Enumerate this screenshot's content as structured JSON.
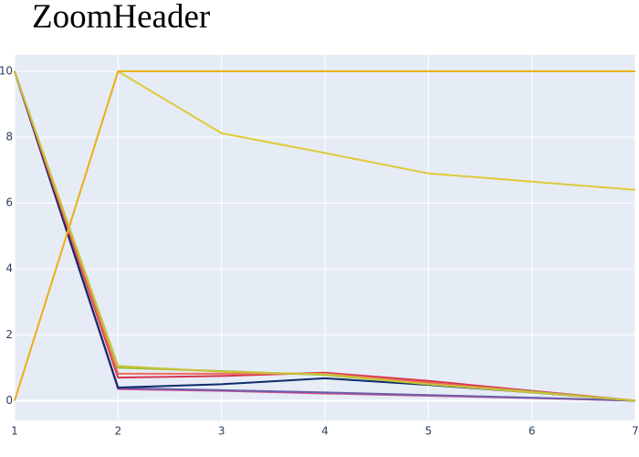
{
  "title": "ZoomHeader",
  "chart_data": {
    "type": "line",
    "title": "ZoomHeader",
    "xlabel": "",
    "ylabel": "",
    "xlim": [
      1,
      7
    ],
    "ylim": [
      -0.6,
      10.5
    ],
    "x": [
      1,
      2,
      3,
      4,
      5,
      6,
      7
    ],
    "xticks": [
      "1",
      "2",
      "3",
      "4",
      "5",
      "6",
      "7"
    ],
    "yticks": [
      "0",
      "2",
      "4",
      "6",
      "8",
      "10"
    ],
    "ytick_values": [
      0,
      2,
      4,
      6,
      8,
      10
    ],
    "grid": true,
    "plot_bg": "#e5ecf6",
    "grid_color": "#ffffff",
    "series": [
      {
        "color": "#d44f8f",
        "values": [
          10,
          0.35,
          0.3,
          0.22,
          0.15,
          0.08,
          0.0
        ]
      },
      {
        "color": "#6a5fa8",
        "values": [
          10,
          0.38,
          0.32,
          0.25,
          0.17,
          0.09,
          0.0
        ]
      },
      {
        "color": "#0d2b6b",
        "values": [
          10,
          0.4,
          0.5,
          0.68,
          0.48,
          0.25,
          0.0
        ]
      },
      {
        "color": "#d6344c",
        "values": [
          10,
          0.7,
          0.75,
          0.85,
          0.6,
          0.3,
          0.0
        ]
      },
      {
        "color": "#f06a5a",
        "values": [
          10,
          0.82,
          0.82,
          0.82,
          0.55,
          0.28,
          0.0
        ]
      },
      {
        "color": "#9cc13b",
        "values": [
          10,
          1.0,
          0.9,
          0.78,
          0.5,
          0.27,
          0.0
        ]
      },
      {
        "color": "#c9c23a",
        "values": [
          10,
          1.05,
          0.88,
          0.8,
          0.5,
          0.25,
          0.0
        ]
      },
      {
        "color": "#e0c93a",
        "values": [
          0,
          10,
          8.12,
          7.52,
          6.9,
          6.65,
          6.4
        ]
      },
      {
        "color": "#eab21e",
        "values": [
          0,
          10,
          10,
          10,
          10,
          10,
          10
        ]
      }
    ]
  }
}
